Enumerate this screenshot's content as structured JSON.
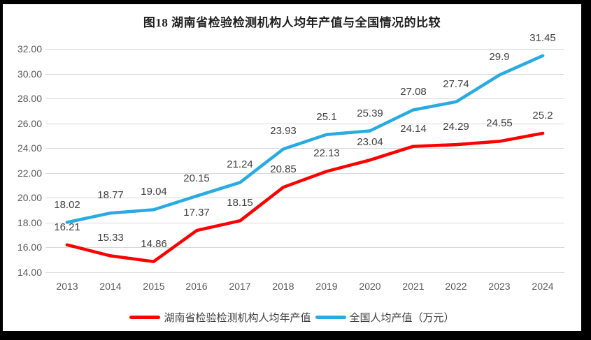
{
  "title": "图18 湖南省检验检测机构人均年产值与全国情况的比较",
  "colors": {
    "hunan_red": "#fe0000",
    "national_blue": "#29abe2",
    "gridline": "#d9d9d9",
    "tick_text": "#595959",
    "label_text": "#404040",
    "frame": "#000000",
    "chart_background": "#ffffff"
  },
  "y_axis": {
    "tick_values": [
      32,
      30,
      28,
      26,
      24,
      22,
      20,
      18,
      16,
      14
    ],
    "tick_labels": [
      "32.00",
      "30.00",
      "28.00",
      "26.00",
      "24.00",
      "22.00",
      "20.00",
      "18.00",
      "16.00",
      "14.00"
    ]
  },
  "x_axis": {
    "tick_labels": [
      "2013",
      "2014",
      "2015",
      "2016",
      "2017",
      "2018",
      "2019",
      "2020",
      "2021",
      "2022",
      "2023",
      "2024"
    ]
  },
  "legend": {
    "items": [
      {
        "label": "湖南省检验检测机构人均年产值",
        "color": "#fe0000"
      },
      {
        "label": "全国人均产值（万元）",
        "color": "#29abe2"
      }
    ]
  },
  "chart_data": {
    "type": "line",
    "title": "图18 湖南省检验检测机构人均年产值与全国情况的比较",
    "categories": [
      "2013",
      "2014",
      "2015",
      "2016",
      "2017",
      "2018",
      "2019",
      "2020",
      "2021",
      "2022",
      "2023",
      "2024"
    ],
    "series": [
      {
        "name": "湖南省检验检测机构人均年产值",
        "color": "#fe0000",
        "values": [
          16.21,
          15.33,
          14.86,
          17.37,
          18.15,
          20.85,
          22.13,
          23.04,
          24.14,
          24.29,
          24.55,
          25.2
        ],
        "labels": [
          "16.21",
          "15.33",
          "14.86",
          "17.37",
          "18.15",
          "20.85",
          "22.13",
          "23.04",
          "24.14",
          "24.29",
          "24.55",
          "25.2"
        ]
      },
      {
        "name": "全国人均产值（万元）",
        "color": "#29abe2",
        "values": [
          18.02,
          18.77,
          19.04,
          20.15,
          21.24,
          23.93,
          25.1,
          25.39,
          27.08,
          27.74,
          29.9,
          31.45
        ],
        "labels": [
          "18.02",
          "18.77",
          "19.04",
          "20.15",
          "21.24",
          "23.93",
          "25.1",
          "25.39",
          "27.08",
          "27.74",
          "29.9",
          "31.45"
        ]
      }
    ],
    "ylim": [
      14,
      32
    ],
    "ytick_step": 2,
    "xlabel": "",
    "ylabel": "",
    "grid": "horizontal",
    "legend_position": "bottom",
    "data_labels": "above-points"
  }
}
